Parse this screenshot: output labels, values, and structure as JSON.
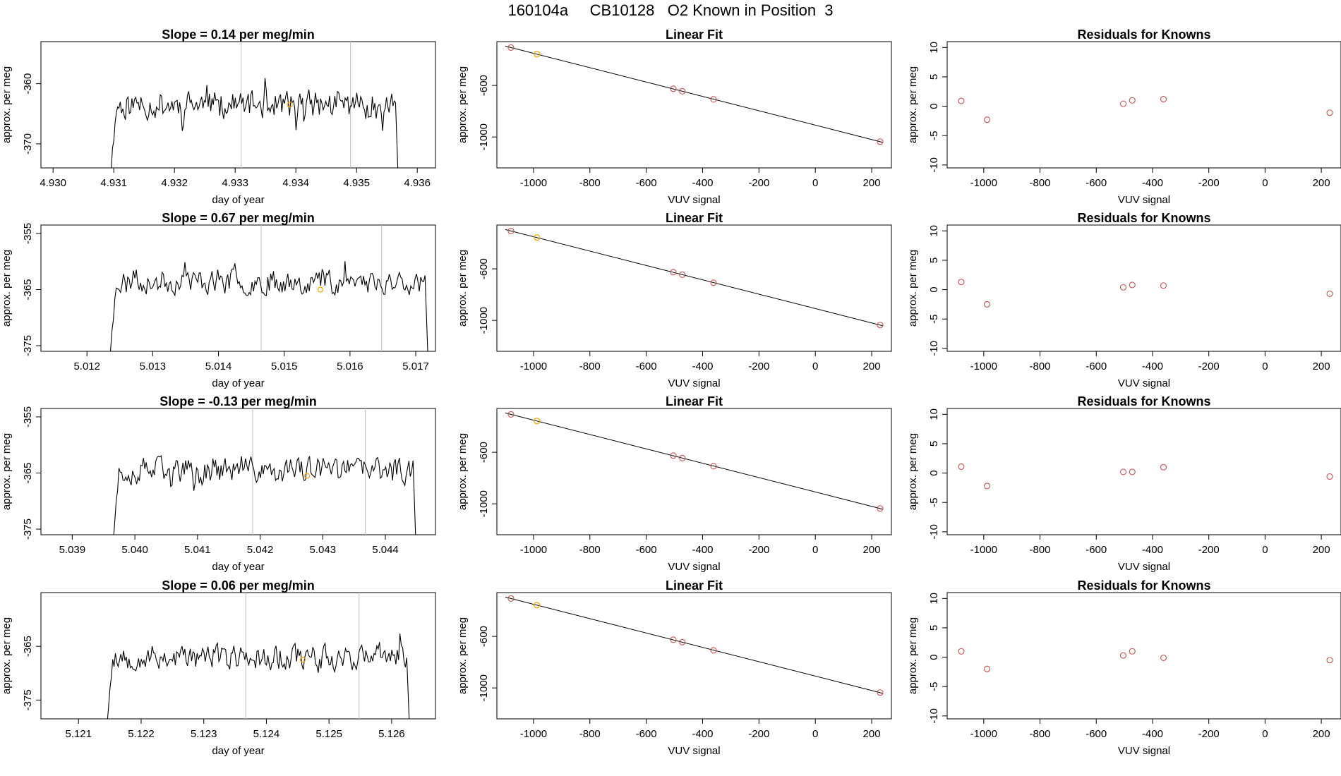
{
  "figure_title": "160104a     CB10128   O2 Known in Position  3",
  "colors": {
    "trace": "#000000",
    "marker_gray": "#bebebe",
    "known_point": "#cd4f4f",
    "highlight_point": "#ffa500"
  },
  "chart_data": [
    {
      "type": "line",
      "panel": "row1-trace",
      "title": "Slope =  0.14  per meg/min",
      "xlabel": "day of year",
      "ylabel": "approx. per meg",
      "xlim": [
        4.9298,
        4.9363
      ],
      "ylim": [
        -374.0,
        -353.0
      ],
      "xticks": [
        "4.930",
        "4.931",
        "4.932",
        "4.933",
        "4.934",
        "4.935",
        "4.936"
      ],
      "yticks": [
        "-360",
        "-370"
      ],
      "x_start": 4.9309,
      "x_end": 4.9357,
      "baseline": -363.5,
      "noise": 3.2,
      "seed": 11,
      "vlines": [
        4.9331,
        4.9349
      ],
      "highlight": {
        "x": 4.9339,
        "y": -363.5
      }
    },
    {
      "type": "scatter",
      "panel": "row1-fit",
      "title": "Linear Fit",
      "xlabel": "VUV signal",
      "ylabel": "approx. per meg",
      "xlim": [
        -1130,
        270
      ],
      "ylim": [
        -1240,
        -260
      ],
      "xticks": [
        "-1000",
        "-800",
        "-600",
        "-400",
        "-200",
        "0",
        "200"
      ],
      "yticks": [
        "-600",
        "-1000"
      ],
      "points": [
        [
          -1080,
          -306
        ],
        [
          -504,
          -626
        ],
        [
          -472,
          -645
        ],
        [
          -361,
          -708
        ],
        [
          230,
          -1036
        ]
      ],
      "highlight": [
        [
          -988,
          -357
        ]
      ],
      "fit_line": [
        [
          -1100,
          -295
        ],
        [
          240,
          -1042
        ]
      ]
    },
    {
      "type": "scatter",
      "panel": "row1-residuals",
      "title": "Residuals for Knowns",
      "xlabel": "VUV signal",
      "ylabel": "approx. per meg",
      "xlim": [
        -1130,
        270
      ],
      "ylim": [
        -10.5,
        11
      ],
      "xticks": [
        "-1000",
        "-800",
        "-600",
        "-400",
        "-200",
        "0",
        "200"
      ],
      "yticks": [
        "10",
        "5",
        "0",
        "-5",
        "-10"
      ],
      "points": [
        [
          -1080,
          0.9
        ],
        [
          -988,
          -2.3
        ],
        [
          -504,
          0.4
        ],
        [
          -472,
          1.0
        ],
        [
          -361,
          1.2
        ],
        [
          230,
          -1.1
        ]
      ]
    },
    {
      "type": "line",
      "panel": "row2-trace",
      "title": "Slope =  0.67  per meg/min",
      "xlabel": "day of year",
      "ylabel": "approx. per meg",
      "xlim": [
        5.0113,
        5.0173
      ],
      "ylim": [
        -376.0,
        -353.5
      ],
      "xticks": [
        "5.012",
        "5.013",
        "5.014",
        "5.015",
        "5.016",
        "5.017"
      ],
      "yticks": [
        "-355",
        "-365",
        "-375"
      ],
      "x_start": 5.0123,
      "x_end": 5.0172,
      "baseline": -363.5,
      "noise": 3.0,
      "seed": 23,
      "vlines": [
        5.01465,
        5.01648
      ],
      "highlight": {
        "x": 5.01555,
        "y": -365.0
      }
    },
    {
      "type": "scatter",
      "panel": "row2-fit",
      "title": "Linear Fit",
      "xlabel": "VUV signal",
      "ylabel": "approx. per meg",
      "xlim": [
        -1130,
        270
      ],
      "ylim": [
        -1240,
        -260
      ],
      "xticks": [
        "-1000",
        "-800",
        "-600",
        "-400",
        "-200",
        "0",
        "200"
      ],
      "yticks": [
        "-600",
        "-1000"
      ],
      "points": [
        [
          -1080,
          -306
        ],
        [
          -504,
          -626
        ],
        [
          -472,
          -645
        ],
        [
          -361,
          -708
        ],
        [
          230,
          -1036
        ]
      ],
      "highlight": [
        [
          -988,
          -357
        ]
      ],
      "fit_line": [
        [
          -1100,
          -295
        ],
        [
          240,
          -1042
        ]
      ]
    },
    {
      "type": "scatter",
      "panel": "row2-residuals",
      "title": "Residuals for Knowns",
      "xlabel": "VUV signal",
      "ylabel": "approx. per meg",
      "xlim": [
        -1130,
        270
      ],
      "ylim": [
        -10.5,
        11
      ],
      "xticks": [
        "-1000",
        "-800",
        "-600",
        "-400",
        "-200",
        "0",
        "200"
      ],
      "yticks": [
        "10",
        "5",
        "0",
        "-5",
        "-10"
      ],
      "points": [
        [
          -1080,
          1.3
        ],
        [
          -988,
          -2.5
        ],
        [
          -504,
          0.4
        ],
        [
          -472,
          0.8
        ],
        [
          -361,
          0.7
        ],
        [
          230,
          -0.7
        ]
      ]
    },
    {
      "type": "line",
      "panel": "row3-trace",
      "title": "Slope =  -0.13  per meg/min",
      "xlabel": "day of year",
      "ylabel": "approx. per meg",
      "xlim": [
        5.0385,
        5.0448
      ],
      "ylim": [
        -376.0,
        -353.5
      ],
      "xticks": [
        "5.039",
        "5.040",
        "5.041",
        "5.042",
        "5.043",
        "5.044"
      ],
      "yticks": [
        "-355",
        "-365",
        "-375"
      ],
      "x_start": 5.0396,
      "x_end": 5.0445,
      "baseline": -364.5,
      "noise": 3.1,
      "seed": 37,
      "vlines": [
        5.04188,
        5.04368
      ],
      "highlight": {
        "x": 5.04275,
        "y": -365.5
      }
    },
    {
      "type": "scatter",
      "panel": "row3-fit",
      "title": "Linear Fit",
      "xlabel": "VUV signal",
      "ylabel": "approx. per meg",
      "xlim": [
        -1130,
        270
      ],
      "ylim": [
        -1240,
        -260
      ],
      "xticks": [
        "-1000",
        "-800",
        "-600",
        "-400",
        "-200",
        "0",
        "200"
      ],
      "yticks": [
        "-600",
        "-1000"
      ],
      "points": [
        [
          -1080,
          -306
        ],
        [
          -504,
          -626
        ],
        [
          -472,
          -645
        ],
        [
          -361,
          -708
        ],
        [
          230,
          -1036
        ]
      ],
      "highlight": [
        [
          -988,
          -357
        ]
      ],
      "fit_line": [
        [
          -1100,
          -295
        ],
        [
          240,
          -1042
        ]
      ]
    },
    {
      "type": "scatter",
      "panel": "row3-residuals",
      "title": "Residuals for Knowns",
      "xlabel": "VUV signal",
      "ylabel": "approx. per meg",
      "xlim": [
        -1130,
        270
      ],
      "ylim": [
        -10.5,
        11
      ],
      "xticks": [
        "-1000",
        "-800",
        "-600",
        "-400",
        "-200",
        "0",
        "200"
      ],
      "yticks": [
        "10",
        "5",
        "0",
        "-5",
        "-10"
      ],
      "points": [
        [
          -1080,
          1.1
        ],
        [
          -988,
          -2.2
        ],
        [
          -504,
          0.2
        ],
        [
          -472,
          0.2
        ],
        [
          -361,
          1.0
        ],
        [
          230,
          -0.6
        ]
      ]
    },
    {
      "type": "line",
      "panel": "row4-trace",
      "title": "Slope =  0.06  per meg/min",
      "xlabel": "day of year",
      "ylabel": "approx. per meg",
      "xlim": [
        5.1204,
        5.1267
      ],
      "ylim": [
        -378.5,
        -355.0
      ],
      "xticks": [
        "5.121",
        "5.122",
        "5.123",
        "5.124",
        "5.125",
        "5.126"
      ],
      "yticks": [
        "-365",
        "-375"
      ],
      "x_start": 5.1214,
      "x_end": 5.1263,
      "baseline": -367.0,
      "noise": 3.2,
      "seed": 53,
      "vlines": [
        5.12367,
        5.12548
      ],
      "highlight": {
        "x": 5.12458,
        "y": -367.5
      }
    },
    {
      "type": "scatter",
      "panel": "row4-fit",
      "title": "Linear Fit",
      "xlabel": "VUV signal",
      "ylabel": "approx. per meg",
      "xlim": [
        -1130,
        270
      ],
      "ylim": [
        -1240,
        -260
      ],
      "xticks": [
        "-1000",
        "-800",
        "-600",
        "-400",
        "-200",
        "0",
        "200"
      ],
      "yticks": [
        "-600",
        "-1000"
      ],
      "points": [
        [
          -1080,
          -306
        ],
        [
          -504,
          -626
        ],
        [
          -472,
          -645
        ],
        [
          -361,
          -708
        ],
        [
          230,
          -1036
        ]
      ],
      "highlight": [
        [
          -988,
          -357
        ]
      ],
      "fit_line": [
        [
          -1100,
          -295
        ],
        [
          240,
          -1042
        ]
      ]
    },
    {
      "type": "scatter",
      "panel": "row4-residuals",
      "title": "Residuals for Knowns",
      "xlabel": "VUV signal",
      "ylabel": "approx. per meg",
      "xlim": [
        -1130,
        270
      ],
      "ylim": [
        -10.5,
        11
      ],
      "xticks": [
        "-1000",
        "-800",
        "-600",
        "-400",
        "-200",
        "0",
        "200"
      ],
      "yticks": [
        "10",
        "5",
        "0",
        "-5",
        "-10"
      ],
      "points": [
        [
          -1080,
          1.0
        ],
        [
          -988,
          -2.0
        ],
        [
          -504,
          0.3
        ],
        [
          -472,
          1.0
        ],
        [
          -361,
          -0.1
        ],
        [
          230,
          -0.5
        ]
      ]
    }
  ]
}
